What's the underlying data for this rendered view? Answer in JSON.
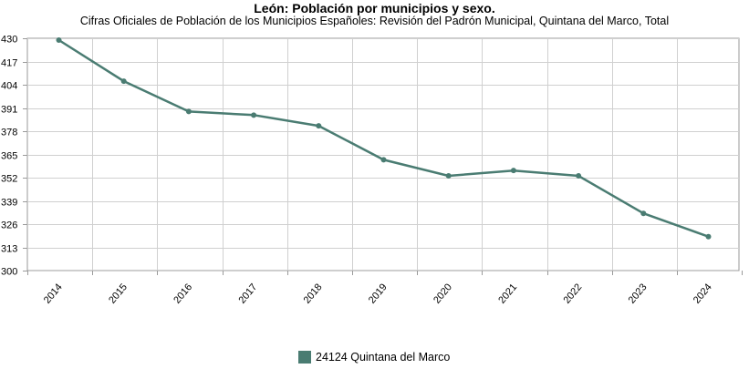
{
  "chart_data": {
    "type": "line",
    "title": "León: Población por municipios y sexo.",
    "subtitle": "Cifras Oficiales de Población de los Municipios Españoles: Revisión del Padrón Municipal, Quintana del Marco, Total",
    "xlabel": "",
    "ylabel": "",
    "categories": [
      "2014",
      "2015",
      "2016",
      "2017",
      "2018",
      "2019",
      "2020",
      "2021",
      "2022",
      "2023",
      "2024"
    ],
    "ylim": [
      300,
      430
    ],
    "yticks": [
      300,
      313,
      326,
      339,
      352,
      365,
      378,
      391,
      404,
      417,
      430
    ],
    "grid": true,
    "legend_position": "bottom",
    "series": [
      {
        "name": "24124 Quintana del Marco",
        "color": "#4a7c72",
        "values": [
          429,
          406,
          389,
          387,
          381,
          362,
          353,
          356,
          353,
          332,
          319
        ]
      }
    ]
  }
}
